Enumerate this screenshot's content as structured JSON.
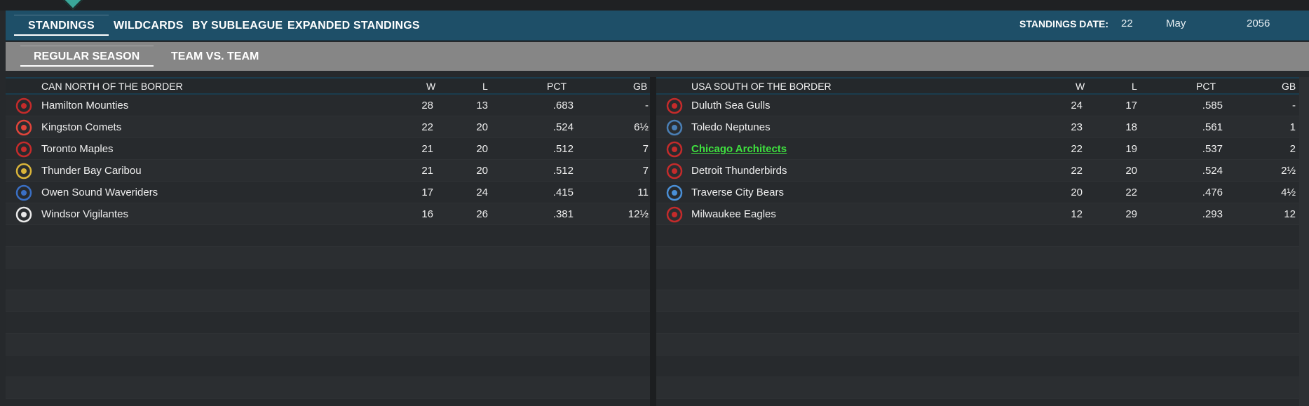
{
  "tabs": [
    {
      "label": "STANDINGS",
      "active": true
    },
    {
      "label": "WILDCARDS",
      "active": false
    },
    {
      "label": "BY SUBLEAGUE",
      "active": false
    },
    {
      "label": "EXPANDED STANDINGS",
      "active": false
    }
  ],
  "standings_date": {
    "label": "STANDINGS DATE:",
    "day": "22",
    "month": "May",
    "year": "2056"
  },
  "subtabs": [
    {
      "label": "REGULAR SEASON",
      "active": true
    },
    {
      "label": "TEAM VS. TEAM",
      "active": false
    }
  ],
  "columns": {
    "w": "W",
    "l": "L",
    "pct": "PCT",
    "gb": "GB"
  },
  "left": {
    "division": "CAN NORTH OF THE BORDER",
    "teams": [
      {
        "name": "Hamilton Mounties",
        "w": "28",
        "l": "13",
        "pct": ".683",
        "gb": "-",
        "icon": "hamilton-logo-icon",
        "color": "#c42b2b"
      },
      {
        "name": "Kingston Comets",
        "w": "22",
        "l": "20",
        "pct": ".524",
        "gb": "6½",
        "icon": "kingston-logo-icon",
        "color": "#e0443a"
      },
      {
        "name": "Toronto Maples",
        "w": "21",
        "l": "20",
        "pct": ".512",
        "gb": "7",
        "icon": "toronto-logo-icon",
        "color": "#c42b2b"
      },
      {
        "name": "Thunder Bay Caribou",
        "w": "21",
        "l": "20",
        "pct": ".512",
        "gb": "7",
        "icon": "thunder-bay-logo-icon",
        "color": "#d9b43a"
      },
      {
        "name": "Owen Sound Waveriders",
        "w": "17",
        "l": "24",
        "pct": ".415",
        "gb": "11",
        "icon": "owen-sound-logo-icon",
        "color": "#3a6fc4"
      },
      {
        "name": "Windsor Vigilantes",
        "w": "16",
        "l": "26",
        "pct": ".381",
        "gb": "12½",
        "icon": "windsor-logo-icon",
        "color": "#e8e8e8"
      }
    ]
  },
  "right": {
    "division": "USA SOUTH OF THE BORDER",
    "teams": [
      {
        "name": "Duluth Sea Gulls",
        "w": "24",
        "l": "17",
        "pct": ".585",
        "gb": "-",
        "icon": "duluth-logo-icon",
        "color": "#c42b2b"
      },
      {
        "name": "Toledo Neptunes",
        "w": "23",
        "l": "18",
        "pct": ".561",
        "gb": "1",
        "icon": "toledo-logo-icon",
        "color": "#4a7fb5"
      },
      {
        "name": "Chicago Architects",
        "w": "22",
        "l": "19",
        "pct": ".537",
        "gb": "2",
        "icon": "chicago-logo-icon",
        "color": "#c42b2b",
        "highlight": true
      },
      {
        "name": "Detroit Thunderbirds",
        "w": "22",
        "l": "20",
        "pct": ".524",
        "gb": "2½",
        "icon": "detroit-logo-icon",
        "color": "#c42b2b"
      },
      {
        "name": "Traverse City Bears",
        "w": "20",
        "l": "22",
        "pct": ".476",
        "gb": "4½",
        "icon": "traverse-city-logo-icon",
        "color": "#4a8fd6"
      },
      {
        "name": "Milwaukee Eagles",
        "w": "12",
        "l": "29",
        "pct": ".293",
        "gb": "12",
        "icon": "milwaukee-logo-icon",
        "color": "#c42b2b"
      }
    ]
  }
}
